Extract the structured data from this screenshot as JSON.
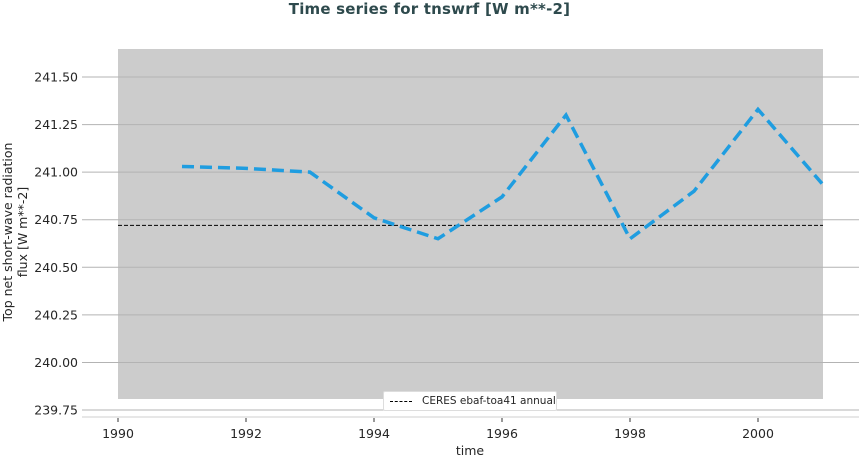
{
  "title": "Time series for tnswrf [W m**-2]",
  "xlabel": "time",
  "ylabel_line1": "Top net short-wave radiation",
  "ylabel_line2": "flux [W m**-2]",
  "legend": {
    "entries": [
      {
        "label": "CERES ebaf-toa41 annual",
        "style": "dashed",
        "color": "#000000"
      }
    ]
  },
  "colors": {
    "plot_bg": "#cccccc",
    "series": "#1f9de0",
    "grid": "#b3b3b3",
    "title": "#2e4a4d"
  },
  "y_ticks": [
    "241.50",
    "241.25",
    "241.00",
    "240.75",
    "240.50",
    "240.25",
    "240.00",
    "239.75"
  ],
  "x_ticks": [
    "1990",
    "1992",
    "1994",
    "1996",
    "1998",
    "2000"
  ],
  "chart_data": {
    "type": "line",
    "title": "Time series for tnswrf [W m**-2]",
    "xlabel": "time",
    "ylabel": "Top net short-wave radiation flux [W m**-2]",
    "x": [
      1991,
      1992,
      1993,
      1994,
      1995,
      1996,
      1997,
      1998,
      1999,
      2000,
      2001
    ],
    "series": [
      {
        "name": "tnswrf",
        "style": "dashed",
        "color": "#1f9de0",
        "values": [
          241.03,
          241.02,
          241.0,
          240.76,
          240.65,
          240.87,
          241.3,
          240.65,
          240.9,
          241.33,
          240.94
        ]
      },
      {
        "name": "CERES ebaf-toa41 annual",
        "style": "dashed",
        "color": "#000000",
        "constant": 240.72
      }
    ],
    "xlim": [
      1990,
      2001
    ],
    "ylim": [
      239.75,
      241.55
    ],
    "y_ticks": [
      239.75,
      240.0,
      240.25,
      240.5,
      240.75,
      241.0,
      241.25,
      241.5
    ],
    "x_ticks": [
      1990,
      1992,
      1994,
      1996,
      1998,
      2000
    ],
    "grid": true,
    "legend_position": "lower center"
  }
}
